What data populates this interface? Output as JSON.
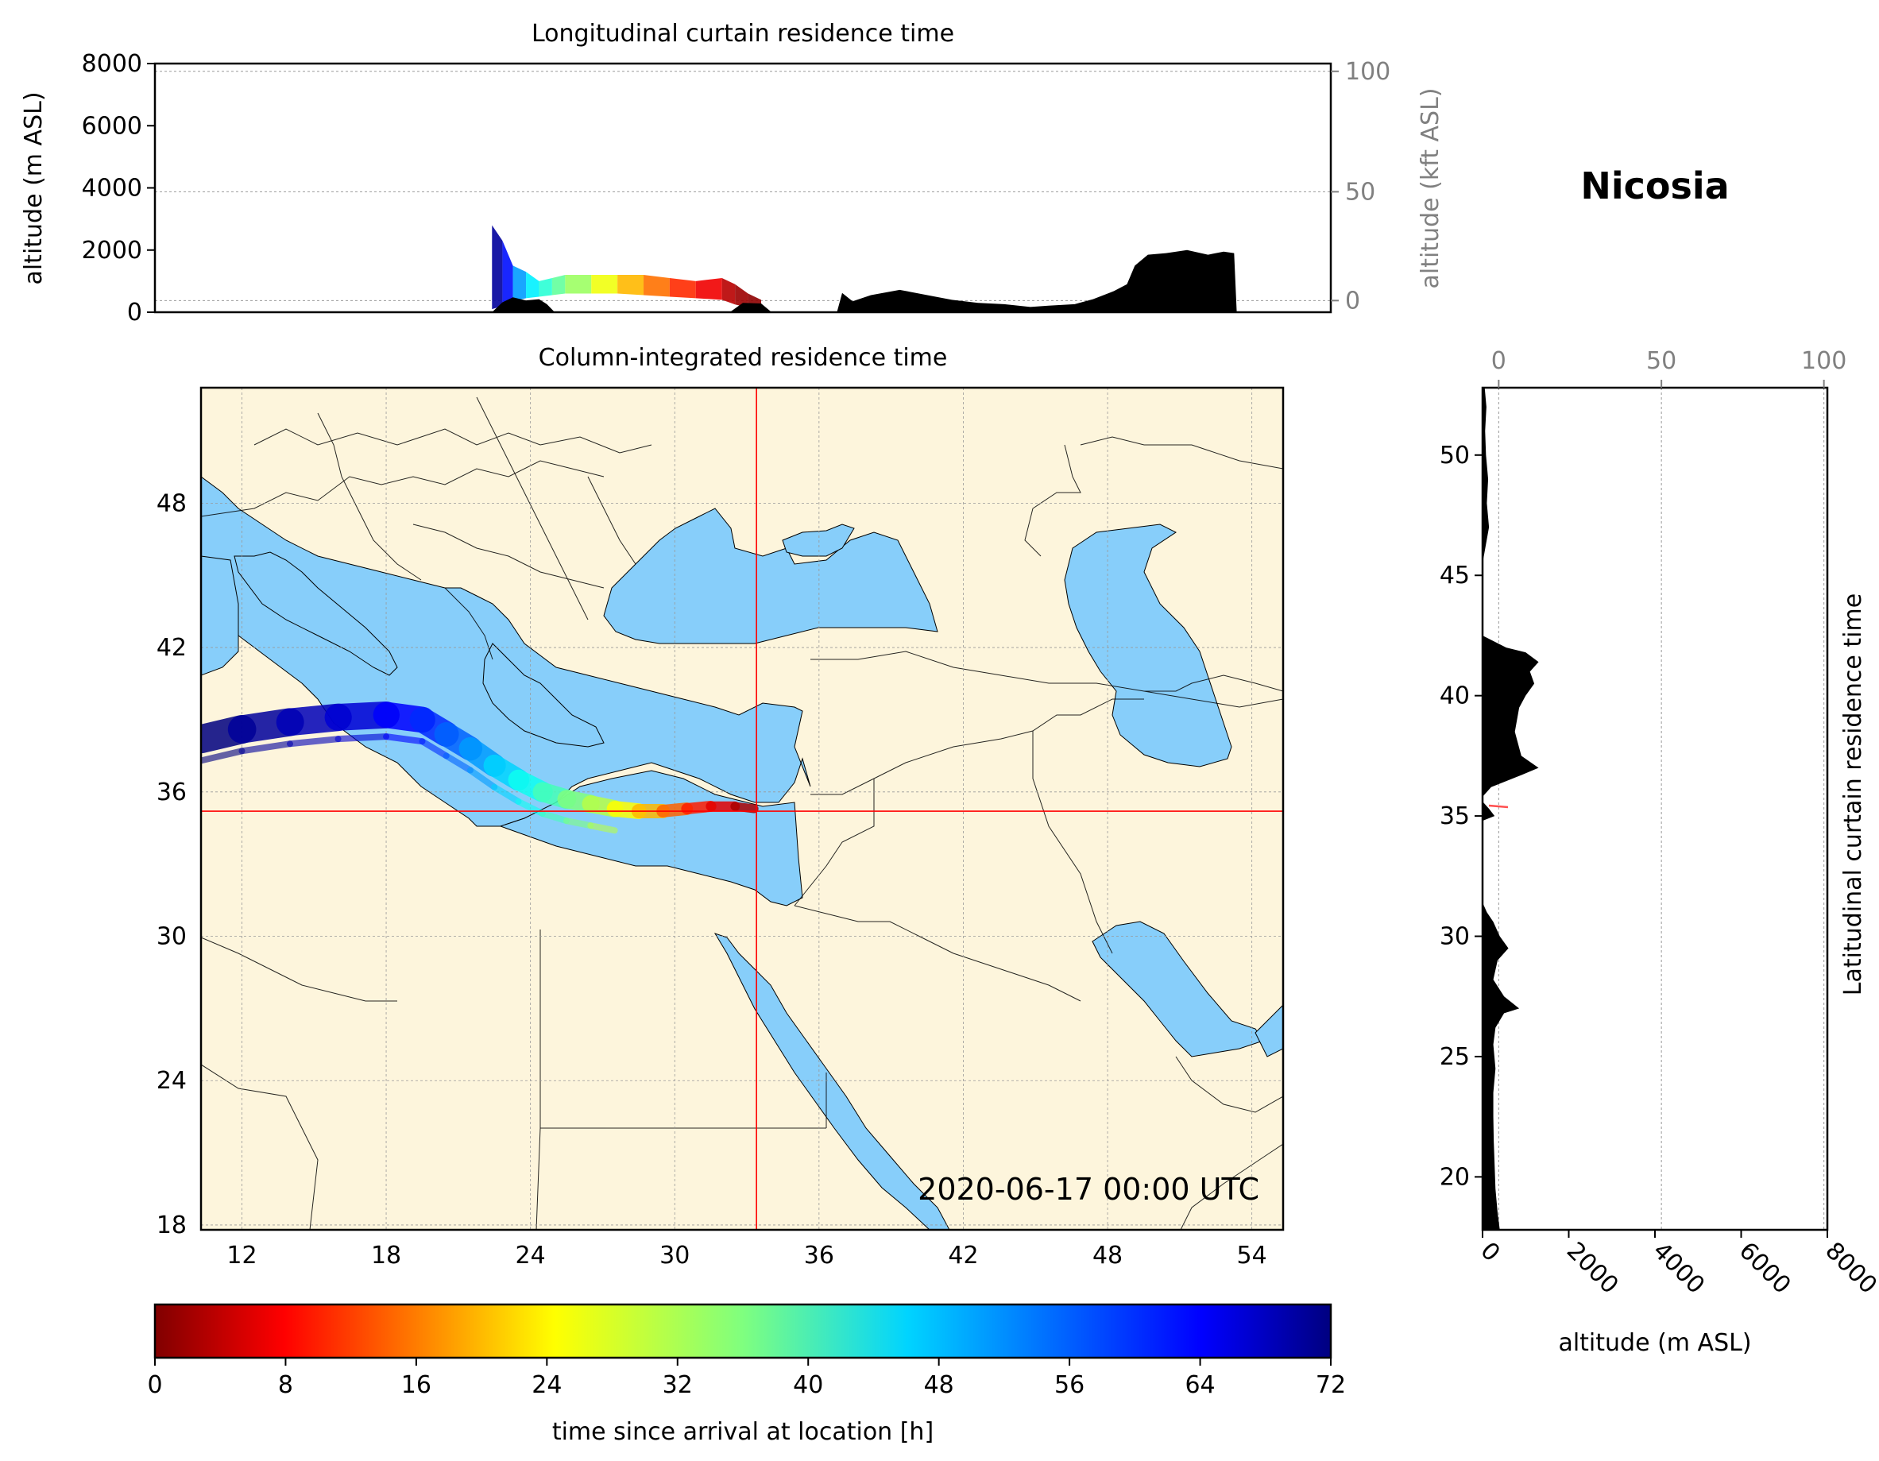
{
  "location": "Nicosia",
  "timestamp": "2020-06-17 00:00 UTC",
  "colors": {
    "land": "#fdf5dc",
    "sea": "#87cefa",
    "terrain": "#000000",
    "crosshair": "#ff0000",
    "grid": "#999999",
    "secondary_axis": "#808080"
  },
  "chart_data": [
    {
      "id": "longitudinal",
      "type": "area",
      "title": "Longitudinal curtain residence time",
      "xlabel": "",
      "ylabel": "altitude (m ASL)",
      "ylabel_right": "altitude (kft ASL)",
      "xlim": [
        10.3,
        55.3
      ],
      "ylim": [
        0,
        8000
      ],
      "yticks": [
        "0",
        "2000",
        "4000",
        "6000",
        "8000"
      ],
      "yticks_right": [
        "0",
        "50",
        "100"
      ],
      "grid": true,
      "terrain": {
        "lon": [
          23.2,
          23.6,
          24.0,
          24.5,
          25.0,
          25.3,
          25.6,
          32.3,
          32.8,
          33.5,
          33.9,
          36.4,
          36.6,
          37.0,
          37.7,
          38.8,
          39.8,
          40.8,
          41.8,
          42.8,
          43.8,
          44.5,
          45.5,
          46.2,
          47.0,
          47.5,
          47.8,
          48.3,
          49.0,
          49.8,
          50.6,
          51.2,
          51.6,
          51.7
        ],
        "alt": [
          0,
          320,
          480,
          380,
          420,
          260,
          0,
          0,
          300,
          280,
          0,
          0,
          620,
          350,
          550,
          720,
          560,
          400,
          300,
          260,
          170,
          210,
          260,
          420,
          680,
          900,
          1500,
          1850,
          1900,
          2000,
          1850,
          1950,
          1900,
          0
        ]
      },
      "residence_time_band": {
        "lon": [
          23.2,
          23.6,
          24.0,
          24.5,
          25.0,
          25.5,
          26.0,
          27.0,
          28.0,
          29.0,
          30.0,
          31.0,
          32.0,
          32.5,
          33.0,
          33.5
        ],
        "alt_top": [
          2800,
          2300,
          1500,
          1300,
          1000,
          1100,
          1200,
          1200,
          1200,
          1200,
          1100,
          1000,
          1100,
          900,
          600,
          400
        ],
        "alt_bottom": [
          100,
          200,
          350,
          450,
          500,
          550,
          600,
          600,
          600,
          550,
          500,
          450,
          400,
          250,
          150,
          0
        ],
        "hours": [
          70,
          62,
          52,
          46,
          42,
          38,
          34,
          28,
          22,
          17,
          12,
          8,
          4,
          2,
          1,
          0
        ]
      }
    },
    {
      "id": "column_integrated",
      "type": "heatmap",
      "title": "Column-integrated residence time",
      "xlabel": "",
      "ylabel": "",
      "xlim": [
        10.3,
        55.3
      ],
      "ylim": [
        17.8,
        52.8
      ],
      "xticks": [
        "12",
        "18",
        "24",
        "30",
        "36",
        "42",
        "48",
        "54"
      ],
      "yticks": [
        "18",
        "24",
        "30",
        "36",
        "42",
        "48"
      ],
      "grid": true,
      "crosshair": {
        "lon": 33.4,
        "lat": 35.2
      },
      "trajectory": {
        "lon": [
          10.3,
          12.0,
          14.0,
          16.0,
          18.0,
          19.5,
          20.5,
          21.5,
          22.5,
          23.5,
          24.5,
          25.5,
          26.5,
          27.5,
          28.5,
          29.5,
          30.5,
          31.5,
          32.5,
          33.3
        ],
        "lat": [
          38.2,
          38.6,
          38.9,
          39.1,
          39.2,
          39.0,
          38.4,
          37.8,
          37.1,
          36.5,
          36.0,
          35.7,
          35.5,
          35.3,
          35.2,
          35.2,
          35.3,
          35.4,
          35.4,
          35.3
        ],
        "hours": [
          72,
          70,
          68,
          66,
          63,
          60,
          56,
          52,
          48,
          44,
          40,
          36,
          32,
          27,
          22,
          16,
          11,
          7,
          3,
          0
        ]
      }
    },
    {
      "id": "latitudinal",
      "type": "area",
      "title": "Latitudinal curtain residence time",
      "xlabel": "altitude (m ASL)",
      "ylabel": "",
      "xlabel_top": "",
      "xlim": [
        0,
        8000
      ],
      "ylim": [
        17.8,
        52.8
      ],
      "xticks": [
        "0",
        "2000",
        "4000",
        "6000",
        "8000"
      ],
      "xticks_top": [
        "0",
        "50",
        "100"
      ],
      "yticks": [
        "20",
        "25",
        "30",
        "35",
        "40",
        "45",
        "50"
      ],
      "grid": true,
      "terrain": {
        "lat": [
          17.8,
          18.5,
          19.5,
          20.5,
          21.5,
          22.5,
          23.5,
          24.5,
          25.5,
          26.2,
          26.8,
          27.0,
          27.5,
          28.2,
          29.0,
          29.5,
          30.0,
          30.6,
          31.0,
          31.4,
          34.8,
          35.0,
          35.3,
          35.6,
          35.8,
          36.2,
          36.7,
          37.0,
          37.5,
          38.5,
          39.5,
          40.0,
          40.5,
          41.0,
          41.4,
          41.8,
          42.0,
          42.5,
          43.5,
          44.5,
          45.5,
          46.5,
          47.0,
          48.0,
          49.0,
          50.0,
          51.0,
          52.0,
          52.8
        ],
        "alt": [
          400,
          350,
          300,
          280,
          260,
          250,
          250,
          300,
          250,
          300,
          500,
          850,
          500,
          250,
          350,
          600,
          400,
          250,
          100,
          0,
          0,
          280,
          150,
          0,
          0,
          200,
          900,
          1300,
          900,
          750,
          850,
          1000,
          1200,
          1100,
          1300,
          1000,
          550,
          0,
          0,
          0,
          0,
          100,
          150,
          100,
          130,
          80,
          60,
          90,
          50
        ]
      }
    },
    {
      "id": "colorbar",
      "type": "heatmap",
      "title": "",
      "xlabel": "time since arrival at location [h]",
      "xlim": [
        0,
        72
      ],
      "xticks": [
        "0",
        "8",
        "16",
        "24",
        "32",
        "40",
        "48",
        "56",
        "64",
        "72"
      ]
    }
  ]
}
